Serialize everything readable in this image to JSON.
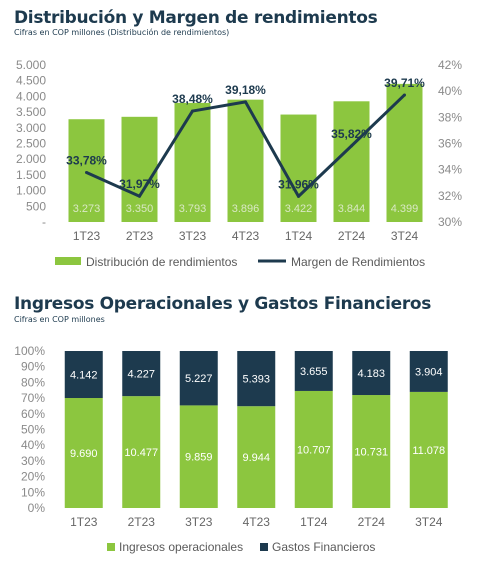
{
  "chart_data": [
    {
      "type": "bar",
      "title": "Distribución y Margen de rendimientos",
      "subtitle": "Cifras en COP millones (Distribución de rendimientos)",
      "categories": [
        "1T23",
        "2T23",
        "3T23",
        "4T23",
        "1T24",
        "2T24",
        "3T24"
      ],
      "ylim": [
        0,
        5000
      ],
      "y_ticks": [
        "5.000",
        "4.500",
        "4.000",
        "3.500",
        "3.000",
        "2.500",
        "2.000",
        "1.500",
        "1.000",
        "500",
        "-"
      ],
      "y2lim": [
        30,
        42
      ],
      "y2_ticks": [
        "42%",
        "40%",
        "38%",
        "36%",
        "34%",
        "32%",
        "30%"
      ],
      "series": [
        {
          "name": "Distribución de rendimientos",
          "type": "bar",
          "color": "#8cc63f",
          "values": [
            3273,
            3350,
            3793,
            3896,
            3422,
            3844,
            4399
          ],
          "labels": [
            "3.273",
            "3.350",
            "3.793",
            "3.896",
            "3.422",
            "3.844",
            "4.399"
          ]
        },
        {
          "name": "Margen de Rendimientos",
          "type": "line",
          "axis": "secondary",
          "color": "#1d3a4e",
          "values": [
            33.78,
            31.97,
            38.48,
            39.18,
            31.96,
            35.82,
            39.71
          ],
          "labels": [
            "33,78%",
            "31,97%",
            "38,48%",
            "39,18%",
            "31,96%",
            "35,82%",
            "39,71%"
          ]
        }
      ],
      "grid": false,
      "legend": "bottom"
    },
    {
      "type": "bar",
      "stacked": "percent",
      "title": "Ingresos Operacionales y Gastos Financieros",
      "subtitle": "Cifras en COP millones",
      "categories": [
        "1T23",
        "2T23",
        "3T23",
        "4T23",
        "1T24",
        "2T24",
        "3T24"
      ],
      "ylim": [
        0,
        100
      ],
      "y_ticks": [
        "100%",
        "90%",
        "80%",
        "70%",
        "60%",
        "50%",
        "40%",
        "30%",
        "20%",
        "10%",
        "0%"
      ],
      "series": [
        {
          "name": "Ingresos operacionales",
          "color": "#8cc63f",
          "values": [
            9690,
            10477,
            9859,
            9944,
            10707,
            10731,
            11078
          ],
          "labels": [
            "9.690",
            "10.477",
            "9.859",
            "9.944",
            "10.707",
            "10.731",
            "11.078"
          ]
        },
        {
          "name": "Gastos Financieros",
          "color": "#1d3a4e",
          "values": [
            4142,
            4227,
            5227,
            5393,
            3655,
            4183,
            3904
          ],
          "labels": [
            "4.142",
            "4.227",
            "5.227",
            "5.393",
            "3.655",
            "4.183",
            "3.904"
          ]
        }
      ],
      "grid": false,
      "legend": "bottom"
    }
  ]
}
